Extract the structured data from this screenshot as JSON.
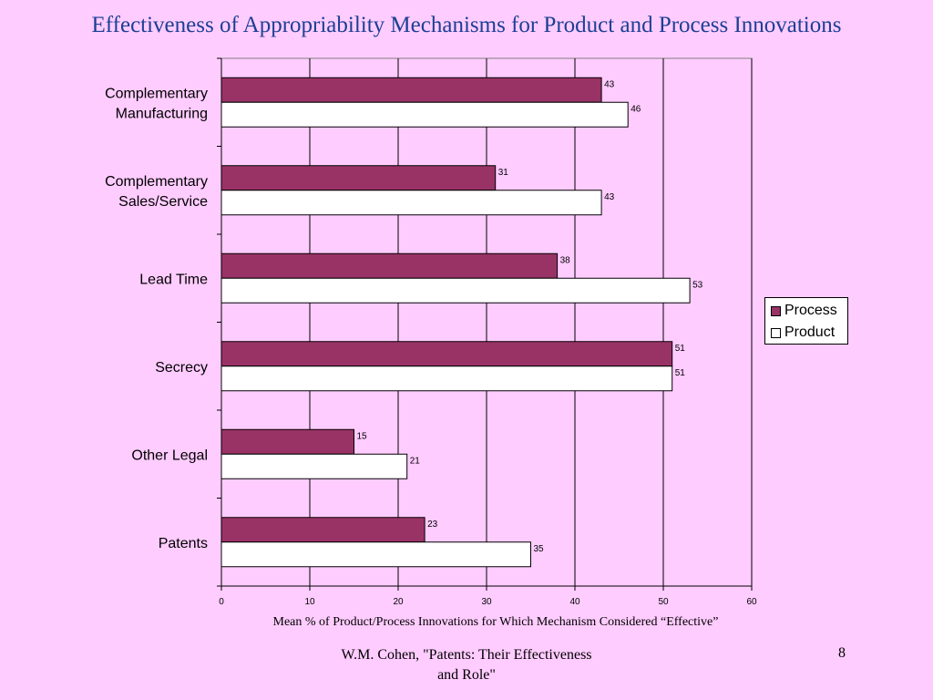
{
  "slide": {
    "title": "Effectiveness of Appropriability Mechanisms for Product and Process Innovations",
    "footer_source": "W.M. Cohen, \"Patents: Their Effectiveness and Role\"",
    "page_number": "8"
  },
  "colors": {
    "background": "#ffccff",
    "title": "#1c3f94",
    "process": "#993366",
    "product": "#ffffff",
    "plot_area": "#ffccff"
  },
  "chart_data": {
    "type": "bar",
    "orientation": "horizontal",
    "categories": [
      "Complementary Manufacturing",
      "Complementary Sales/Service",
      "Lead Time",
      "Secrecy",
      "Other Legal",
      "Patents"
    ],
    "category_lines": [
      [
        "Complementary",
        "Manufacturing"
      ],
      [
        "Complementary",
        "Sales/Service"
      ],
      [
        "Lead Time"
      ],
      [
        "Secrecy"
      ],
      [
        "Other Legal"
      ],
      [
        "Patents"
      ]
    ],
    "series": [
      {
        "name": "Process",
        "values": [
          43,
          31,
          38,
          51,
          15,
          23
        ],
        "color": "#993366"
      },
      {
        "name": "Product",
        "values": [
          46,
          43,
          53,
          51,
          21,
          35
        ],
        "color": "#ffffff"
      }
    ],
    "xlabel": "Mean  % of Product/Process Innovations for Which Mechanism Considered “Effective”",
    "ylabel": "",
    "xlim": [
      0,
      60
    ],
    "xticks": [
      0,
      10,
      20,
      30,
      40,
      50,
      60
    ],
    "grid": "vertical",
    "data_labels": true,
    "legend_position": "right"
  }
}
